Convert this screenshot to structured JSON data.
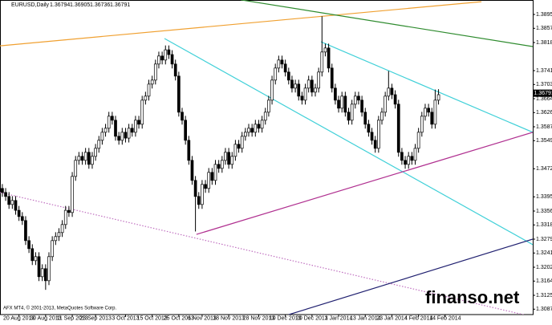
{
  "chart_data": {
    "type": "candlestick",
    "title": "EURUSD,Daily",
    "quote": [
      1.36794,
      1.36905,
      1.36736,
      1.36791
    ],
    "footer": "AFX MT4, © 2001-2013, MetaQuotes Software Corp.",
    "watermark": "finanso.net",
    "xlim": [
      -0.7,
      159.3
    ],
    "ylim": [
      1.30722,
      1.39346
    ],
    "yticks": [
      {
        "value": 1.3895,
        "label": "1.38950"
      },
      {
        "value": 1.3857,
        "label": "1.38570"
      },
      {
        "value": 1.3818,
        "label": "1.38180"
      },
      {
        "value": 1.3741,
        "label": "1.37410"
      },
      {
        "value": 1.3703,
        "label": "1.37030"
      },
      {
        "value": 1.3664,
        "label": "1.36640"
      },
      {
        "value": 1.3626,
        "label": "1.36260"
      },
      {
        "value": 1.3587,
        "label": "1.35870"
      },
      {
        "value": 1.3549,
        "label": "1.35490"
      },
      {
        "value": 1.3472,
        "label": "1.34720"
      },
      {
        "value": 1.3395,
        "label": "1.33950"
      },
      {
        "value": 1.3356,
        "label": "1.33560"
      },
      {
        "value": 1.3318,
        "label": "1.33180"
      },
      {
        "value": 1.3279,
        "label": "1.32790"
      },
      {
        "value": 1.3241,
        "label": "1.32410"
      },
      {
        "value": 1.3202,
        "label": "1.32020"
      },
      {
        "value": 1.3164,
        "label": "1.31640"
      },
      {
        "value": 1.3125,
        "label": "1.31250"
      },
      {
        "value": 1.3087,
        "label": "1.30870"
      }
    ],
    "categories": [
      null,
      null,
      null,
      null,
      null,
      "20 Aug 2013",
      null,
      null,
      null,
      null,
      null,
      null,
      null,
      "30 Aug 2013",
      null,
      null,
      null,
      null,
      null,
      null,
      null,
      "11 Sep 2013",
      null,
      null,
      null,
      null,
      null,
      null,
      "23 Sep 2013",
      null,
      null,
      null,
      null,
      null,
      null,
      null,
      null,
      "3 Oct 2013",
      null,
      null,
      null,
      null,
      null,
      null,
      null,
      "15 Oct 2013",
      null,
      null,
      null,
      null,
      null,
      null,
      null,
      "25 Oct 2013",
      null,
      null,
      null,
      null,
      null,
      null,
      "6 Nov 2013",
      null,
      null,
      null,
      null,
      null,
      null,
      null,
      "18 Nov 2013",
      null,
      null,
      null,
      null,
      null,
      null,
      null,
      null,
      "28 Nov 2013",
      null,
      null,
      null,
      null,
      null,
      null,
      null,
      "10 Dec 2013",
      null,
      null,
      null,
      null,
      null,
      null,
      null,
      "20 Dec 2013",
      null,
      null,
      null,
      null,
      null,
      null,
      null,
      "1 Jan 2014",
      null,
      null,
      null,
      null,
      null,
      null,
      null,
      "13 Jan 2014",
      null,
      null,
      null,
      null,
      null,
      null,
      null,
      "23 Jan 2014",
      null,
      null,
      null,
      null,
      null,
      null,
      null,
      "4 Feb 2014",
      null,
      null,
      null,
      null,
      null,
      null,
      null,
      "14 Feb 2014"
    ],
    "candles": [
      [
        1.3418,
        1.343,
        1.3395,
        1.3407
      ],
      [
        1.3407,
        1.3419,
        1.3384,
        1.3396
      ],
      [
        1.3396,
        1.3408,
        1.3362,
        1.3374
      ],
      [
        1.3374,
        1.3397,
        1.3362,
        1.3385
      ],
      [
        1.3385,
        1.3397,
        1.3346,
        1.3358
      ],
      [
        1.3358,
        1.337,
        1.3329,
        1.3341
      ],
      [
        1.3341,
        1.3353,
        1.3318,
        1.333
      ],
      [
        1.333,
        1.3342,
        1.3263,
        1.3275
      ],
      [
        1.3275,
        1.3287,
        1.3241,
        1.3253
      ],
      [
        1.3253,
        1.3265,
        1.3208,
        1.322
      ],
      [
        1.322,
        1.3243,
        1.3208,
        1.3231
      ],
      [
        1.3231,
        1.3243,
        1.3164,
        1.3176
      ],
      [
        1.3176,
        1.321,
        1.3164,
        1.3198
      ],
      [
        1.3198,
        1.321,
        1.314,
        1.3165
      ],
      [
        1.3165,
        1.3243,
        1.3153,
        1.3231
      ],
      [
        1.3231,
        1.3287,
        1.3219,
        1.3275
      ],
      [
        1.3275,
        1.3298,
        1.3263,
        1.3286
      ],
      [
        1.3286,
        1.3309,
        1.3274,
        1.3297
      ],
      [
        1.3297,
        1.3331,
        1.3285,
        1.3319
      ],
      [
        1.3319,
        1.337,
        1.3307,
        1.3358
      ],
      [
        1.3358,
        1.337,
        1.334,
        1.3352
      ],
      [
        1.3352,
        1.3463,
        1.334,
        1.3451
      ],
      [
        1.3451,
        1.3507,
        1.3439,
        1.3495
      ],
      [
        1.3495,
        1.3518,
        1.3483,
        1.3506
      ],
      [
        1.3506,
        1.3518,
        1.3483,
        1.3495
      ],
      [
        1.3495,
        1.3529,
        1.3483,
        1.3517
      ],
      [
        1.3517,
        1.3529,
        1.3472,
        1.3484
      ],
      [
        1.3484,
        1.3518,
        1.3472,
        1.3506
      ],
      [
        1.3506,
        1.354,
        1.3494,
        1.3528
      ],
      [
        1.3528,
        1.3562,
        1.3516,
        1.355
      ],
      [
        1.355,
        1.3584,
        1.3538,
        1.3572
      ],
      [
        1.3572,
        1.3595,
        1.356,
        1.3583
      ],
      [
        1.3583,
        1.3628,
        1.3571,
        1.3616
      ],
      [
        1.3616,
        1.3628,
        1.3593,
        1.3605
      ],
      [
        1.3605,
        1.3617,
        1.3549,
        1.3561
      ],
      [
        1.3561,
        1.3573,
        1.3538,
        1.355
      ],
      [
        1.355,
        1.3584,
        1.3538,
        1.3572
      ],
      [
        1.3572,
        1.3584,
        1.3544,
        1.3556
      ],
      [
        1.3556,
        1.3595,
        1.3544,
        1.3583
      ],
      [
        1.3583,
        1.3595,
        1.356,
        1.3572
      ],
      [
        1.3572,
        1.3617,
        1.356,
        1.3605
      ],
      [
        1.3605,
        1.3617,
        1.3582,
        1.3594
      ],
      [
        1.3594,
        1.3672,
        1.3582,
        1.366
      ],
      [
        1.366,
        1.3683,
        1.3648,
        1.3671
      ],
      [
        1.3671,
        1.3716,
        1.3659,
        1.3704
      ],
      [
        1.3704,
        1.3727,
        1.3692,
        1.3715
      ],
      [
        1.3715,
        1.3771,
        1.3703,
        1.3759
      ],
      [
        1.3759,
        1.3793,
        1.3747,
        1.3781
      ],
      [
        1.3781,
        1.3793,
        1.3758,
        1.377
      ],
      [
        1.377,
        1.381,
        1.3758,
        1.3798
      ],
      [
        1.3798,
        1.381,
        1.3773,
        1.3785
      ],
      [
        1.3785,
        1.3797,
        1.3747,
        1.3759
      ],
      [
        1.3759,
        1.3771,
        1.3714,
        1.3726
      ],
      [
        1.3726,
        1.3738,
        1.3615,
        1.3627
      ],
      [
        1.3627,
        1.3639,
        1.3593,
        1.3605
      ],
      [
        1.3605,
        1.3617,
        1.3538,
        1.355
      ],
      [
        1.355,
        1.3562,
        1.3483,
        1.3495
      ],
      [
        1.3495,
        1.3507,
        1.3428,
        1.344
      ],
      [
        1.344,
        1.3452,
        1.33,
        1.3396
      ],
      [
        1.3396,
        1.3408,
        1.3362,
        1.3374
      ],
      [
        1.3374,
        1.3441,
        1.3362,
        1.3429
      ],
      [
        1.3429,
        1.3441,
        1.3406,
        1.3418
      ],
      [
        1.3418,
        1.3474,
        1.3406,
        1.3462
      ],
      [
        1.3462,
        1.3474,
        1.3428,
        1.344
      ],
      [
        1.344,
        1.3496,
        1.3428,
        1.3484
      ],
      [
        1.3484,
        1.3496,
        1.3461,
        1.3473
      ],
      [
        1.3473,
        1.3507,
        1.3461,
        1.3495
      ],
      [
        1.3495,
        1.3529,
        1.3483,
        1.3517
      ],
      [
        1.3517,
        1.3529,
        1.3472,
        1.3484
      ],
      [
        1.3484,
        1.3518,
        1.3472,
        1.3506
      ],
      [
        1.3506,
        1.3551,
        1.3494,
        1.3539
      ],
      [
        1.3539,
        1.3551,
        1.3516,
        1.3528
      ],
      [
        1.3528,
        1.3573,
        1.3516,
        1.3561
      ],
      [
        1.3561,
        1.3584,
        1.3549,
        1.3572
      ],
      [
        1.3572,
        1.3595,
        1.356,
        1.3583
      ],
      [
        1.3583,
        1.3595,
        1.356,
        1.3572
      ],
      [
        1.3572,
        1.3606,
        1.356,
        1.3594
      ],
      [
        1.3594,
        1.3606,
        1.3571,
        1.3583
      ],
      [
        1.3583,
        1.3617,
        1.3571,
        1.3605
      ],
      [
        1.3605,
        1.3639,
        1.3593,
        1.3627
      ],
      [
        1.3627,
        1.3672,
        1.3615,
        1.366
      ],
      [
        1.366,
        1.3727,
        1.3648,
        1.3715
      ],
      [
        1.3715,
        1.376,
        1.3703,
        1.3748
      ],
      [
        1.3748,
        1.3782,
        1.3736,
        1.377
      ],
      [
        1.377,
        1.3782,
        1.3747,
        1.3759
      ],
      [
        1.3759,
        1.3771,
        1.3725,
        1.3737
      ],
      [
        1.3737,
        1.3749,
        1.3703,
        1.3715
      ],
      [
        1.3715,
        1.3727,
        1.3681,
        1.3693
      ],
      [
        1.3693,
        1.3716,
        1.3681,
        1.3704
      ],
      [
        1.3704,
        1.3716,
        1.3659,
        1.3671
      ],
      [
        1.3671,
        1.3683,
        1.3648,
        1.366
      ],
      [
        1.366,
        1.3705,
        1.3648,
        1.3693
      ],
      [
        1.3693,
        1.3727,
        1.3681,
        1.3715
      ],
      [
        1.3715,
        1.3727,
        1.367,
        1.3682
      ],
      [
        1.3682,
        1.3705,
        1.367,
        1.3693
      ],
      [
        1.3693,
        1.3749,
        1.3681,
        1.3737
      ],
      [
        1.3737,
        1.389,
        1.3725,
        1.3792
      ],
      [
        1.3792,
        1.3815,
        1.378,
        1.3803
      ],
      [
        1.3803,
        1.3815,
        1.3736,
        1.3748
      ],
      [
        1.3748,
        1.376,
        1.3681,
        1.3693
      ],
      [
        1.3693,
        1.3705,
        1.3648,
        1.366
      ],
      [
        1.366,
        1.3672,
        1.3626,
        1.3638
      ],
      [
        1.3638,
        1.3683,
        1.3626,
        1.3671
      ],
      [
        1.3671,
        1.3683,
        1.3615,
        1.3627
      ],
      [
        1.3627,
        1.3639,
        1.3593,
        1.3605
      ],
      [
        1.3605,
        1.3661,
        1.3593,
        1.3649
      ],
      [
        1.3649,
        1.3683,
        1.3637,
        1.3671
      ],
      [
        1.3671,
        1.3683,
        1.3648,
        1.366
      ],
      [
        1.366,
        1.3672,
        1.3615,
        1.3627
      ],
      [
        1.3627,
        1.3639,
        1.3582,
        1.3594
      ],
      [
        1.3594,
        1.3606,
        1.356,
        1.3572
      ],
      [
        1.3572,
        1.3584,
        1.3538,
        1.355
      ],
      [
        1.355,
        1.3562,
        1.3516,
        1.3528
      ],
      [
        1.3528,
        1.3617,
        1.3516,
        1.3605
      ],
      [
        1.3605,
        1.3639,
        1.3593,
        1.3627
      ],
      [
        1.3627,
        1.3683,
        1.3615,
        1.3671
      ],
      [
        1.3671,
        1.374,
        1.3659,
        1.3693
      ],
      [
        1.3693,
        1.3705,
        1.3663,
        1.3675
      ],
      [
        1.3675,
        1.3687,
        1.3637,
        1.3649
      ],
      [
        1.3649,
        1.3661,
        1.3505,
        1.3517
      ],
      [
        1.3517,
        1.3529,
        1.3483,
        1.3495
      ],
      [
        1.3495,
        1.3507,
        1.3472,
        1.3484
      ],
      [
        1.3484,
        1.3518,
        1.3472,
        1.3506
      ],
      [
        1.3506,
        1.3518,
        1.3483,
        1.3495
      ],
      [
        1.3495,
        1.354,
        1.3483,
        1.3528
      ],
      [
        1.3528,
        1.3584,
        1.3516,
        1.3572
      ],
      [
        1.3572,
        1.3628,
        1.356,
        1.3616
      ],
      [
        1.3616,
        1.365,
        1.3604,
        1.3638
      ],
      [
        1.3638,
        1.365,
        1.3615,
        1.3627
      ],
      [
        1.3627,
        1.3639,
        1.3582,
        1.3594
      ],
      [
        1.3594,
        1.3689,
        1.3582,
        1.366
      ],
      [
        1.366,
        1.369,
        1.3648,
        1.3675
      ],
      null,
      null
    ],
    "trendlines": [
      {
        "color": "#f0a030",
        "style": "solid",
        "x": [
          -0.7,
          143.9
        ],
        "y": [
          1.3809,
          1.393
        ]
      },
      {
        "color": "#2e8b2e",
        "style": "solid",
        "x": [
          71.6,
          159.3
        ],
        "y": [
          1.3935,
          1.3807
        ]
      },
      {
        "color": "#40d0d8",
        "style": "solid",
        "x": [
          48.7,
          159.3
        ],
        "y": [
          1.3829,
          1.3264
        ]
      },
      {
        "color": "#40d0d8",
        "style": "solid",
        "x": [
          95.7,
          159.3
        ],
        "y": [
          1.382,
          1.3572
        ]
      },
      {
        "color": "#b03090",
        "style": "solid",
        "x": [
          58.3,
          159.3
        ],
        "y": [
          1.3292,
          1.3572
        ]
      },
      {
        "color": "#c070c0",
        "style": "dotted",
        "x": [
          -0.7,
          159.3
        ],
        "y": [
          1.3407,
          1.3066
        ]
      },
      {
        "color": "#202070",
        "style": "solid",
        "x": [
          86,
          159.3
        ],
        "y": [
          1.3072,
          1.3279
        ]
      }
    ]
  }
}
